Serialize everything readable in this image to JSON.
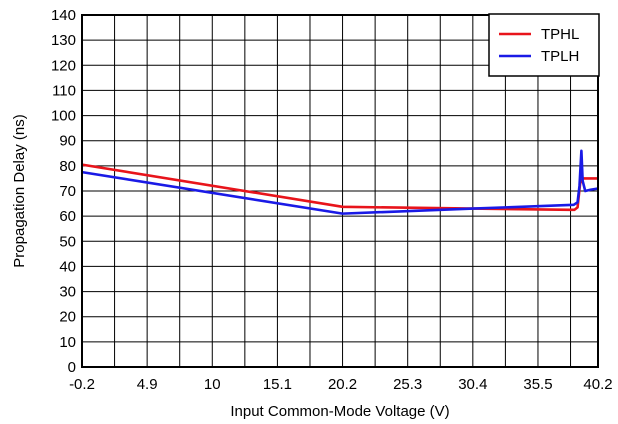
{
  "chart_data": {
    "type": "line",
    "title": "",
    "xlabel": "Input Common-Mode Voltage (V)",
    "ylabel": "Propagation Delay (ns)",
    "xlim": [
      -0.2,
      40.2
    ],
    "ylim": [
      0,
      140
    ],
    "xticks": [
      -0.2,
      4.9,
      10,
      15.1,
      20.2,
      25.3,
      30.4,
      35.5,
      40.2
    ],
    "xtick_labels": [
      "-0.2",
      "4.9",
      "10",
      "15.1",
      "20.2",
      "25.3",
      "30.4",
      "35.5",
      "40.2"
    ],
    "x_minor_step": 2.55,
    "yticks": [
      0,
      10,
      20,
      30,
      40,
      50,
      60,
      70,
      80,
      90,
      100,
      110,
      120,
      130,
      140
    ],
    "ytick_labels": [
      "0",
      "10",
      "20",
      "30",
      "40",
      "50",
      "60",
      "70",
      "80",
      "90",
      "100",
      "110",
      "120",
      "130",
      "140"
    ],
    "grid": true,
    "legend_position": "top-right",
    "series": [
      {
        "name": "TPHL",
        "color": "#e8141b",
        "points": [
          [
            -0.2,
            80.5
          ],
          [
            20.2,
            63.7
          ],
          [
            30.4,
            63.0
          ],
          [
            38.0,
            62.5
          ],
          [
            38.35,
            62.5
          ],
          [
            38.6,
            63.5
          ],
          [
            38.8,
            73.0
          ],
          [
            39.0,
            75.0
          ],
          [
            40.2,
            75.0
          ]
        ]
      },
      {
        "name": "TPLH",
        "color": "#1a1ae6",
        "points": [
          [
            -0.2,
            77.5
          ],
          [
            20.2,
            61.0
          ],
          [
            30.4,
            63.0
          ],
          [
            38.3,
            64.5
          ],
          [
            38.6,
            65.5
          ],
          [
            38.75,
            72.0
          ],
          [
            38.9,
            86.0
          ],
          [
            39.0,
            74.0
          ],
          [
            39.2,
            70.0
          ],
          [
            39.6,
            70.5
          ],
          [
            40.2,
            71.0
          ]
        ]
      }
    ]
  }
}
